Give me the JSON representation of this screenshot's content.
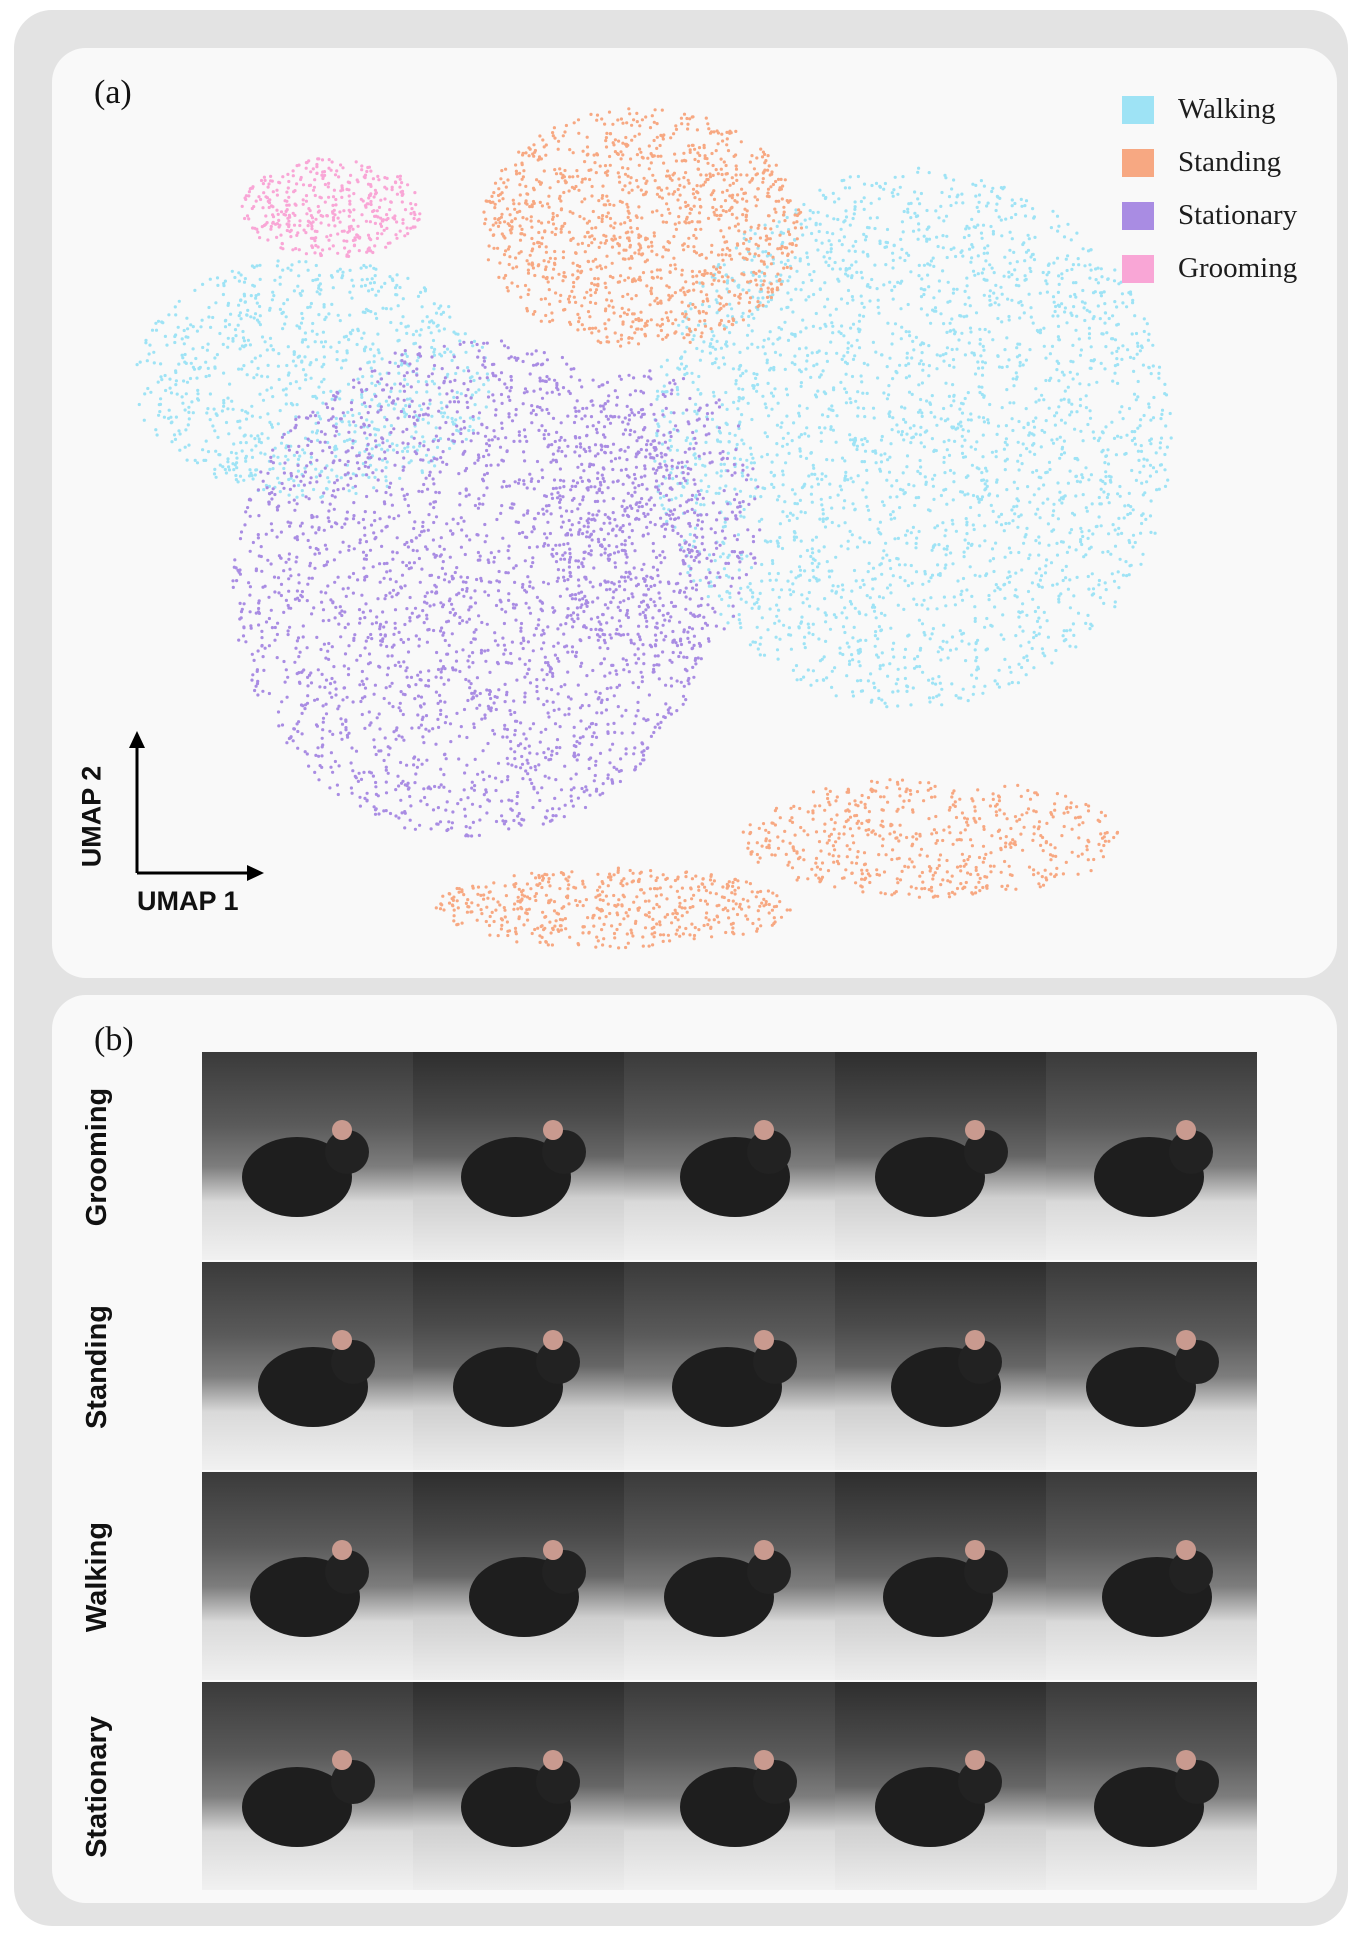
{
  "panel_a": {
    "label": "(a)",
    "legend": [
      {
        "label": "Walking",
        "color": "#9ee3f5"
      },
      {
        "label": "Standing",
        "color": "#f7a882"
      },
      {
        "label": "Stationary",
        "color": "#a98ce3"
      },
      {
        "label": "Grooming",
        "color": "#f9a6d6"
      }
    ],
    "axis_x_label": "UMAP 1",
    "axis_y_label": "UMAP 2"
  },
  "panel_b": {
    "label": "(b)",
    "rows": [
      {
        "label": "Grooming",
        "photos": [
          "mouse-photo",
          "mouse-photo",
          "mouse-photo",
          "mouse-photo",
          "mouse-photo"
        ]
      },
      {
        "label": "Standing",
        "photos": [
          "mouse-photo",
          "mouse-photo",
          "mouse-photo",
          "mouse-photo",
          "mouse-photo"
        ]
      },
      {
        "label": "Walking",
        "photos": [
          "mouse-photo",
          "mouse-photo",
          "mouse-photo",
          "mouse-photo",
          "mouse-photo"
        ]
      },
      {
        "label": "Stationary",
        "photos": [
          "mouse-photo",
          "mouse-photo",
          "mouse-photo",
          "mouse-photo",
          "mouse-photo"
        ]
      }
    ]
  }
}
